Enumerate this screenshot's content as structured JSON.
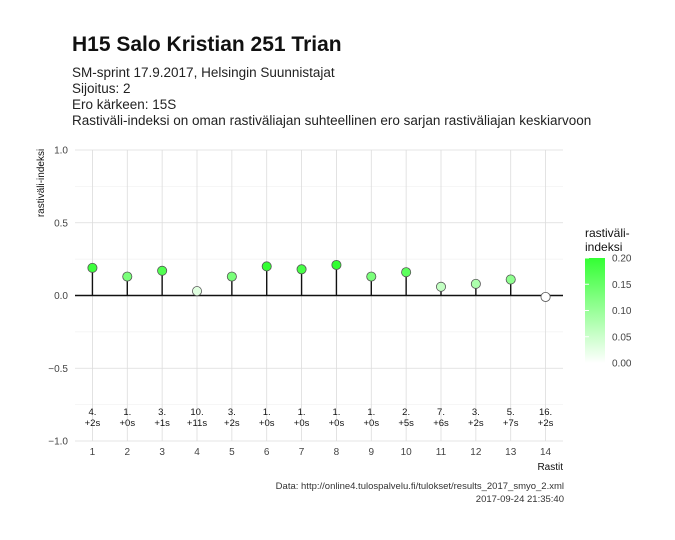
{
  "header": {
    "title": "H15 Salo Kristian 251 Trian",
    "subtitle_lines": [
      "SM-sprint 17.9.2017, Helsingin Suunnistajat",
      "Sijoitus: 2",
      "Ero kärkeen: 15S",
      "Rastiväli-indeksi on oman rastiväliajan suhteellinen ero sarjan rastiväliajan keskiarvoon"
    ]
  },
  "caption": {
    "source": "Data: http://online4.tulospalvelu.fi/tulokset/results_2017_smyo_2.xml",
    "timestamp": "2017-09-24 21:35:40"
  },
  "chart_data": {
    "type": "scatter",
    "xlabel": "Rastit",
    "ylabel": "rastiväli-indeksi",
    "xlim": [
      0.5,
      14.5
    ],
    "ylim": [
      -1.0,
      1.0
    ],
    "x_ticks": [
      1,
      2,
      3,
      4,
      5,
      6,
      7,
      8,
      9,
      10,
      11,
      12,
      13,
      14
    ],
    "y_ticks": [
      -1.0,
      -0.5,
      0.0,
      0.5,
      1.0
    ],
    "y_tick_labels": [
      "−1.0",
      "−0.5",
      "0.0",
      "0.5",
      "1.0"
    ],
    "grid": true,
    "x": [
      1,
      2,
      3,
      4,
      5,
      6,
      7,
      8,
      9,
      10,
      11,
      12,
      13,
      14
    ],
    "y": [
      0.19,
      0.13,
      0.17,
      0.03,
      0.13,
      0.2,
      0.18,
      0.21,
      0.13,
      0.16,
      0.06,
      0.08,
      0.11,
      -0.01
    ],
    "rank_labels": [
      "4.",
      "1.",
      "3.",
      "10.",
      "3.",
      "1.",
      "1.",
      "1.",
      "1.",
      "2.",
      "7.",
      "3.",
      "5.",
      "16."
    ],
    "diff_labels": [
      "+2s",
      "+0s",
      "+1s",
      "+11s",
      "+2s",
      "+0s",
      "+0s",
      "+0s",
      "+0s",
      "+5s",
      "+6s",
      "+2s",
      "+7s",
      "+2s"
    ],
    "legend": {
      "title": "rastiväli-\nindeksi",
      "ticks": [
        0.2,
        0.15,
        0.1,
        0.05,
        0.0
      ],
      "tick_labels": [
        "0.20",
        "0.15",
        "0.10",
        "0.05",
        "0.00"
      ],
      "range": [
        0.0,
        0.2
      ],
      "color_low": "#ffffff",
      "color_high": "#33ff33",
      "placement": "right"
    }
  }
}
